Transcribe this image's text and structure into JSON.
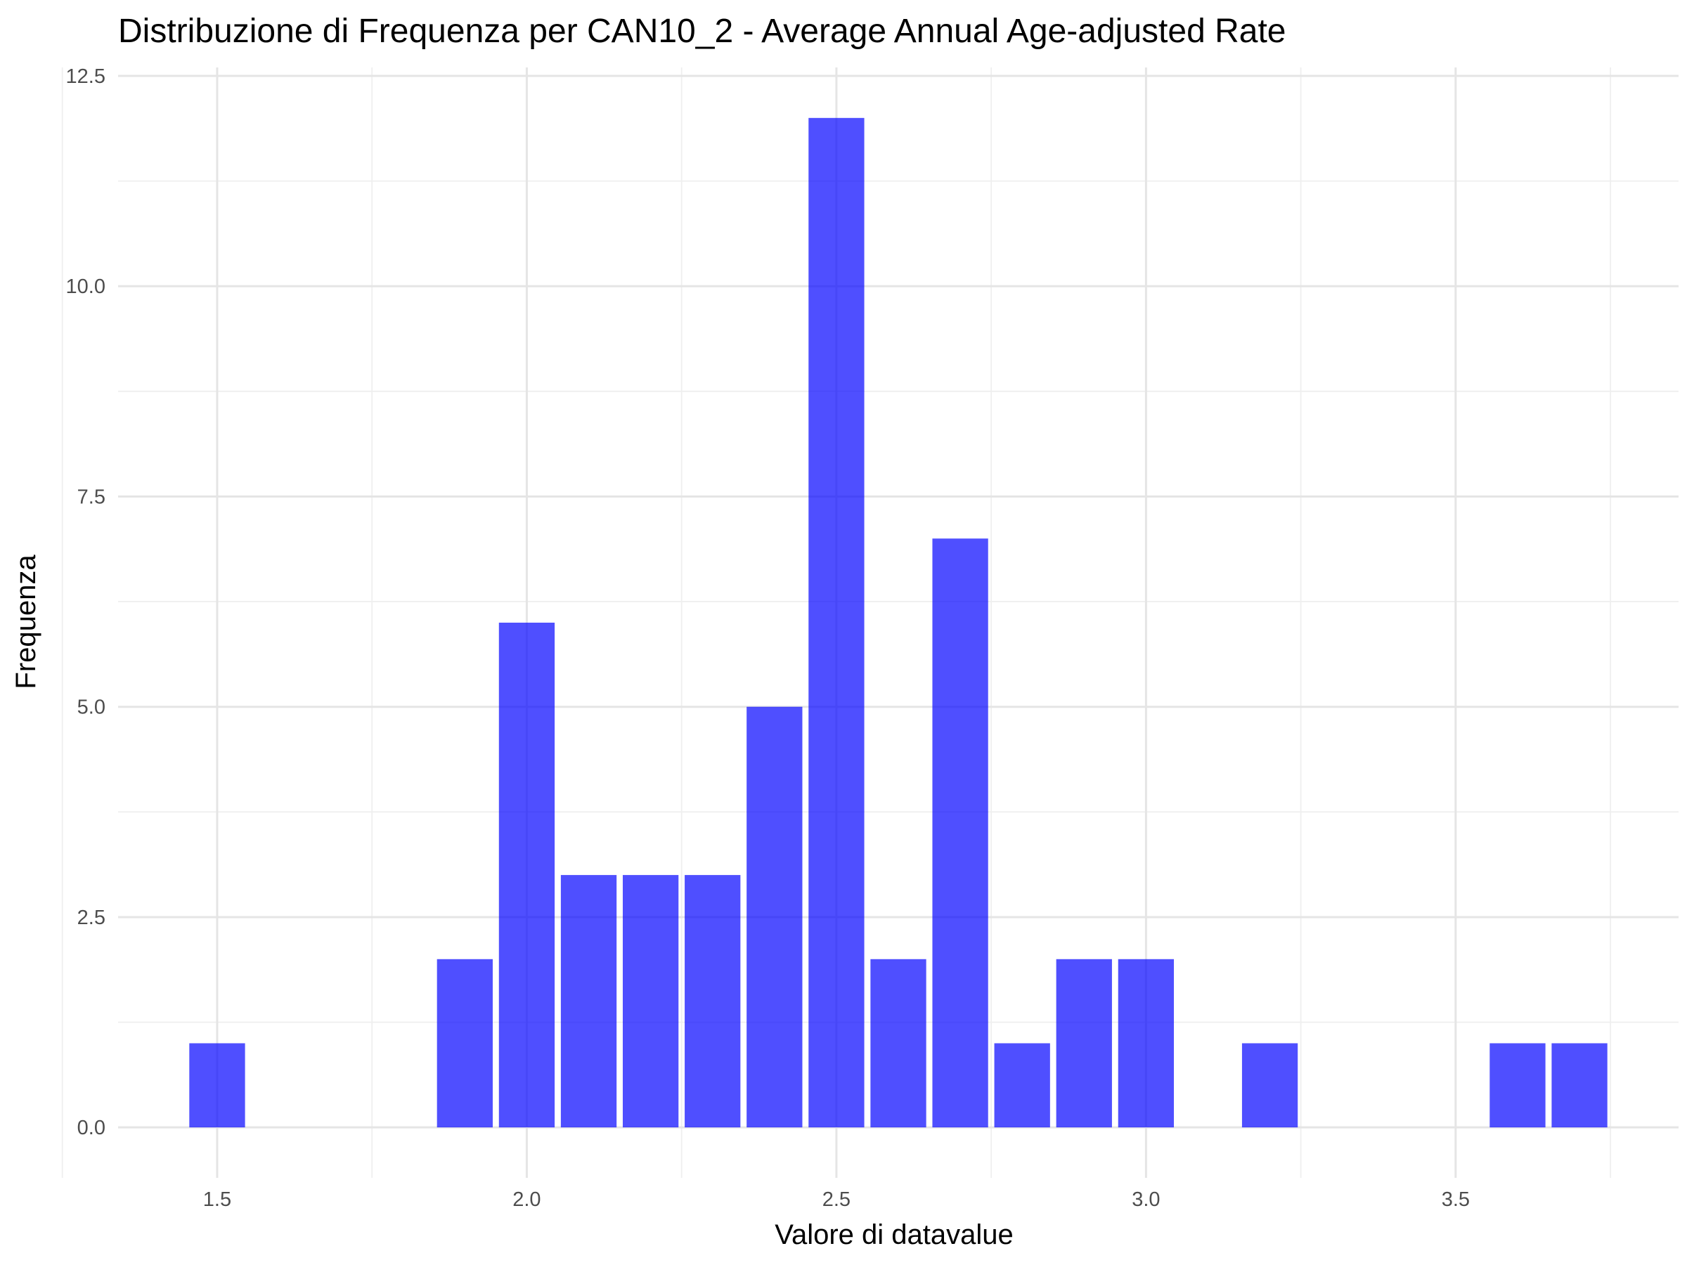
{
  "chart_data": {
    "type": "bar",
    "title": "Distribuzione di Frequenza per CAN10_2 - Average Annual Age-adjusted Rate",
    "xlabel": "Valore di datavalue",
    "ylabel": "Frequenza",
    "x": [
      1.5,
      1.9,
      2.0,
      2.1,
      2.2,
      2.3,
      2.4,
      2.5,
      2.6,
      2.7,
      2.8,
      2.9,
      3.0,
      3.2,
      3.6,
      3.7
    ],
    "values": [
      1,
      2,
      6,
      3,
      3,
      3,
      5,
      12,
      2,
      7,
      1,
      2,
      2,
      1,
      1,
      1
    ],
    "bar_width": 0.09,
    "xlim": [
      1.34,
      3.86
    ],
    "ylim": [
      -0.6,
      12.6
    ],
    "x_ticks": [
      "1.5",
      "2.0",
      "2.5",
      "3.0",
      "3.5"
    ],
    "y_ticks": [
      "0.0",
      "2.5",
      "5.0",
      "7.5",
      "10.0",
      "12.5"
    ],
    "bar_color": "#0000ff",
    "grid": true,
    "legend": "none"
  }
}
